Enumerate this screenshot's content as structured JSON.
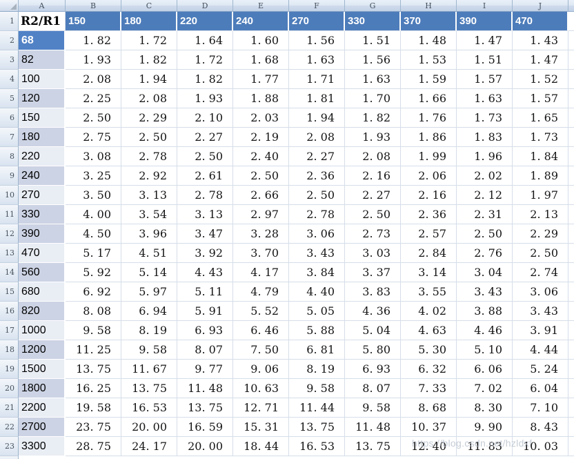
{
  "sheet": {
    "column_letters": [
      "A",
      "B",
      "C",
      "D",
      "E",
      "F",
      "G",
      "H",
      "I",
      "J"
    ],
    "header_row": {
      "n": "1",
      "a_label": "R2/R1",
      "values": [
        "150",
        "180",
        "220",
        "240",
        "270",
        "330",
        "370",
        "390",
        "470"
      ]
    },
    "rows": [
      {
        "n": "2",
        "a": "68",
        "shade": "selected",
        "v": [
          "1. 82",
          "1. 72",
          "1. 64",
          "1. 60",
          "1. 56",
          "1. 51",
          "1. 48",
          "1. 47",
          "1. 43"
        ]
      },
      {
        "n": "3",
        "a": "82",
        "shade": "dark",
        "v": [
          "1. 93",
          "1. 82",
          "1. 72",
          "1. 68",
          "1. 63",
          "1. 56",
          "1. 53",
          "1. 51",
          "1. 47"
        ]
      },
      {
        "n": "4",
        "a": "100",
        "shade": "light",
        "v": [
          "2. 08",
          "1. 94",
          "1. 82",
          "1. 77",
          "1. 71",
          "1. 63",
          "1. 59",
          "1. 57",
          "1. 52"
        ]
      },
      {
        "n": "5",
        "a": "120",
        "shade": "dark",
        "v": [
          "2. 25",
          "2. 08",
          "1. 93",
          "1. 88",
          "1. 81",
          "1. 70",
          "1. 66",
          "1. 63",
          "1. 57"
        ]
      },
      {
        "n": "6",
        "a": "150",
        "shade": "light",
        "v": [
          "2. 50",
          "2. 29",
          "2. 10",
          "2. 03",
          "1. 94",
          "1. 82",
          "1. 76",
          "1. 73",
          "1. 65"
        ]
      },
      {
        "n": "7",
        "a": "180",
        "shade": "dark",
        "v": [
          "2. 75",
          "2. 50",
          "2. 27",
          "2. 19",
          "2. 08",
          "1. 93",
          "1. 86",
          "1. 83",
          "1. 73"
        ]
      },
      {
        "n": "8",
        "a": "220",
        "shade": "light",
        "v": [
          "3. 08",
          "2. 78",
          "2. 50",
          "2. 40",
          "2. 27",
          "2. 08",
          "1. 99",
          "1. 96",
          "1. 84"
        ]
      },
      {
        "n": "9",
        "a": "240",
        "shade": "dark",
        "v": [
          "3. 25",
          "2. 92",
          "2. 61",
          "2. 50",
          "2. 36",
          "2. 16",
          "2. 06",
          "2. 02",
          "1. 89"
        ]
      },
      {
        "n": "10",
        "a": "270",
        "shade": "light",
        "v": [
          "3. 50",
          "3. 13",
          "2. 78",
          "2. 66",
          "2. 50",
          "2. 27",
          "2. 16",
          "2. 12",
          "1. 97"
        ]
      },
      {
        "n": "11",
        "a": "330",
        "shade": "dark",
        "v": [
          "4. 00",
          "3. 54",
          "3. 13",
          "2. 97",
          "2. 78",
          "2. 50",
          "2. 36",
          "2. 31",
          "2. 13"
        ]
      },
      {
        "n": "12",
        "a": "390",
        "shade": "dark",
        "v": [
          "4. 50",
          "3. 96",
          "3. 47",
          "3. 28",
          "3. 06",
          "2. 73",
          "2. 57",
          "2. 50",
          "2. 29"
        ]
      },
      {
        "n": "13",
        "a": "470",
        "shade": "light",
        "v": [
          "5. 17",
          "4. 51",
          "3. 92",
          "3. 70",
          "3. 43",
          "3. 03",
          "2. 84",
          "2. 76",
          "2. 50"
        ]
      },
      {
        "n": "14",
        "a": "560",
        "shade": "dark",
        "v": [
          "5. 92",
          "5. 14",
          "4. 43",
          "4. 17",
          "3. 84",
          "3. 37",
          "3. 14",
          "3. 04",
          "2. 74"
        ]
      },
      {
        "n": "15",
        "a": "680",
        "shade": "light",
        "v": [
          "6. 92",
          "5. 97",
          "5. 11",
          "4. 79",
          "4. 40",
          "3. 83",
          "3. 55",
          "3. 43",
          "3. 06"
        ]
      },
      {
        "n": "16",
        "a": "820",
        "shade": "dark",
        "v": [
          "8. 08",
          "6. 94",
          "5. 91",
          "5. 52",
          "5. 05",
          "4. 36",
          "4. 02",
          "3. 88",
          "3. 43"
        ]
      },
      {
        "n": "17",
        "a": "1000",
        "shade": "light",
        "v": [
          "9. 58",
          "8. 19",
          "6. 93",
          "6. 46",
          "5. 88",
          "5. 04",
          "4. 63",
          "4. 46",
          "3. 91"
        ]
      },
      {
        "n": "18",
        "a": "1200",
        "shade": "dark",
        "v": [
          "11. 25",
          "9. 58",
          "8. 07",
          "7. 50",
          "6. 81",
          "5. 80",
          "5. 30",
          "5. 10",
          "4. 44"
        ]
      },
      {
        "n": "19",
        "a": "1500",
        "shade": "light",
        "v": [
          "13. 75",
          "11. 67",
          "9. 77",
          "9. 06",
          "8. 19",
          "6. 93",
          "6. 32",
          "6. 06",
          "5. 24"
        ]
      },
      {
        "n": "20",
        "a": "1800",
        "shade": "dark",
        "v": [
          "16. 25",
          "13. 75",
          "11. 48",
          "10. 63",
          "9. 58",
          "8. 07",
          "7. 33",
          "7. 02",
          "6. 04"
        ]
      },
      {
        "n": "21",
        "a": "2200",
        "shade": "light",
        "v": [
          "19. 58",
          "16. 53",
          "13. 75",
          "12. 71",
          "11. 44",
          "9. 58",
          "8. 68",
          "8. 30",
          "7. 10"
        ]
      },
      {
        "n": "22",
        "a": "2700",
        "shade": "dark",
        "v": [
          "23. 75",
          "20. 00",
          "16. 59",
          "15. 31",
          "13. 75",
          "11. 48",
          "10. 37",
          "9. 90",
          "8. 43"
        ]
      },
      {
        "n": "23",
        "a": "3300",
        "shade": "light",
        "v": [
          "28. 75",
          "24. 17",
          "20. 00",
          "18. 44",
          "16. 53",
          "13. 75",
          "12. 40",
          "11. 83",
          "10. 03"
        ]
      }
    ],
    "watermark": "https://blog.csdn.net/hzldxf",
    "colors": {
      "header_fill": "#4d7cba",
      "selected_cell_fill": "#5282c6",
      "band_dark": "#ccd3e4",
      "band_light": "#e9edf4",
      "gridline": "#d6dee9",
      "chrome_border": "#9eb6ce"
    }
  }
}
